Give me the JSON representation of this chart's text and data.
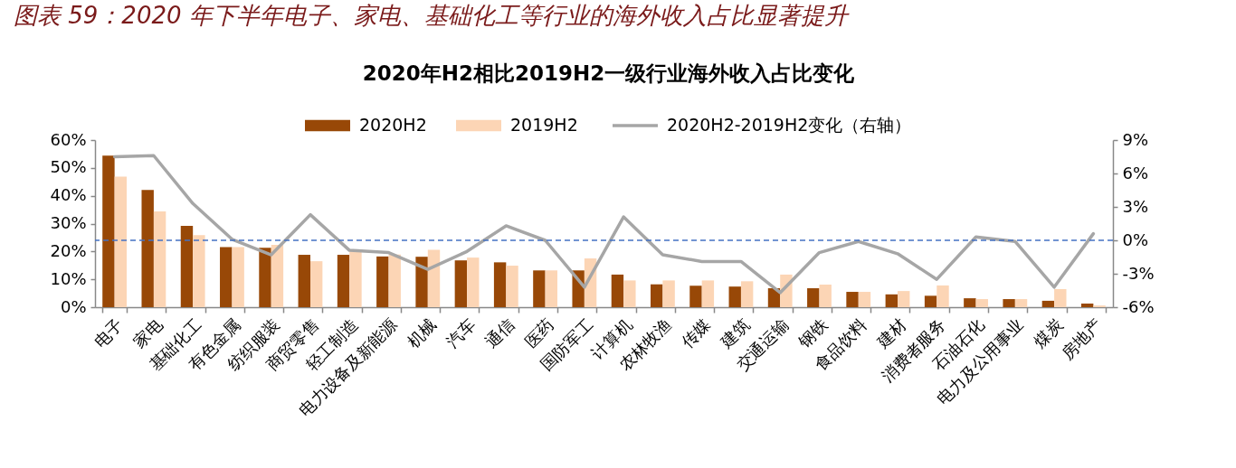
{
  "chart_data": {
    "type": "bar",
    "title": "图表 59：2020 年下半年电子、家电、基础化工等行业的海外收入占比显著提升",
    "subtitle": "2020年H2相比2019H2一级行业海外收入占比变化",
    "categories": [
      "电子",
      "家电",
      "基础化工",
      "有色金属",
      "纺织服装",
      "商贸零售",
      "轻工制造",
      "电力设备及新能源",
      "机械",
      "汽车",
      "通信",
      "医药",
      "国防军工",
      "计算机",
      "农林牧渔",
      "传媒",
      "建筑",
      "交通运输",
      "钢铁",
      "食品饮料",
      "建材",
      "消费者服务",
      "石油石化",
      "电力及公用事业",
      "煤炭",
      "房地产"
    ],
    "series": [
      {
        "name": "2020H2",
        "color": "#984807",
        "values": [
          54.4,
          42.1,
          29.2,
          21.6,
          21.3,
          18.8,
          18.8,
          18.2,
          18.1,
          16.8,
          16.1,
          13.2,
          13.2,
          11.7,
          8.2,
          7.7,
          7.4,
          6.8,
          6.8,
          5.5,
          4.6,
          4.1,
          3.2,
          2.9,
          2.3,
          1.3
        ]
      },
      {
        "name": "2019H2",
        "color": "#fcd5b5",
        "values": [
          46.9,
          34.4,
          25.9,
          21.6,
          22.4,
          16.5,
          20.0,
          18.9,
          20.6,
          17.8,
          14.9,
          13.2,
          17.5,
          9.6,
          9.6,
          9.6,
          9.3,
          11.7,
          8.1,
          5.5,
          5.8,
          7.8,
          2.9,
          2.9,
          6.5,
          0.6
        ]
      },
      {
        "name": "2020H2-2019H2变化（右轴）",
        "type": "line",
        "axis": "y2",
        "color": "#a6a6a6",
        "values": [
          7.5,
          7.6,
          3.3,
          0.1,
          -1.3,
          2.3,
          -0.9,
          -1.1,
          -2.6,
          -1.0,
          1.3,
          0.0,
          -4.2,
          2.1,
          -1.3,
          -1.9,
          -1.9,
          -4.7,
          -1.1,
          -0.1,
          -1.2,
          -3.5,
          0.3,
          -0.1,
          -4.2,
          0.6
        ]
      }
    ],
    "ylim": [
      0,
      60
    ],
    "yticks": [
      {
        "value": 0,
        "label": "0%"
      },
      {
        "value": 10,
        "label": "10%"
      },
      {
        "value": 20,
        "label": "20%"
      },
      {
        "value": 30,
        "label": "30%"
      },
      {
        "value": 40,
        "label": "40%"
      },
      {
        "value": 50,
        "label": "50%"
      },
      {
        "value": 60,
        "label": "60%"
      }
    ],
    "y2lim": [
      -6,
      9
    ],
    "y2ticks": [
      {
        "value": -6,
        "label": "-6%"
      },
      {
        "value": -3,
        "label": "-3%"
      },
      {
        "value": 0,
        "label": "0%"
      },
      {
        "value": 3,
        "label": "3%"
      },
      {
        "value": 6,
        "label": "6%"
      },
      {
        "value": 9,
        "label": "9%"
      }
    ],
    "ref_lines": [
      {
        "axis": "y2",
        "value": 0,
        "color": "#4472c4",
        "line_style": "dashed"
      }
    ],
    "legend": "top",
    "grid": false
  }
}
